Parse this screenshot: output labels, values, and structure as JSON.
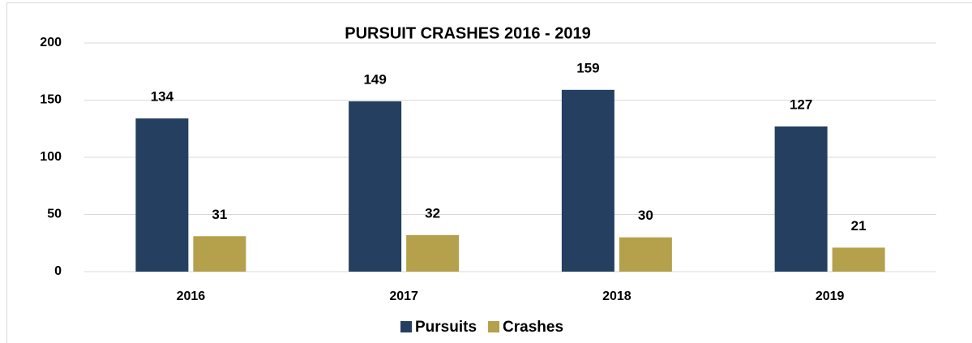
{
  "chart_data": {
    "type": "bar",
    "title": "PURSUIT CRASHES 2016 - 2019",
    "categories": [
      "2016",
      "2017",
      "2018",
      "2019"
    ],
    "series": [
      {
        "name": "Pursuits",
        "color": "#243f60",
        "values": [
          134,
          149,
          159,
          127
        ]
      },
      {
        "name": "Crashes",
        "color": "#b5a04b",
        "values": [
          31,
          32,
          30,
          21
        ]
      }
    ],
    "ylim": [
      0,
      200
    ],
    "yticks": [
      0,
      50,
      100,
      150,
      200
    ],
    "grid": true,
    "legend": "bottom"
  }
}
